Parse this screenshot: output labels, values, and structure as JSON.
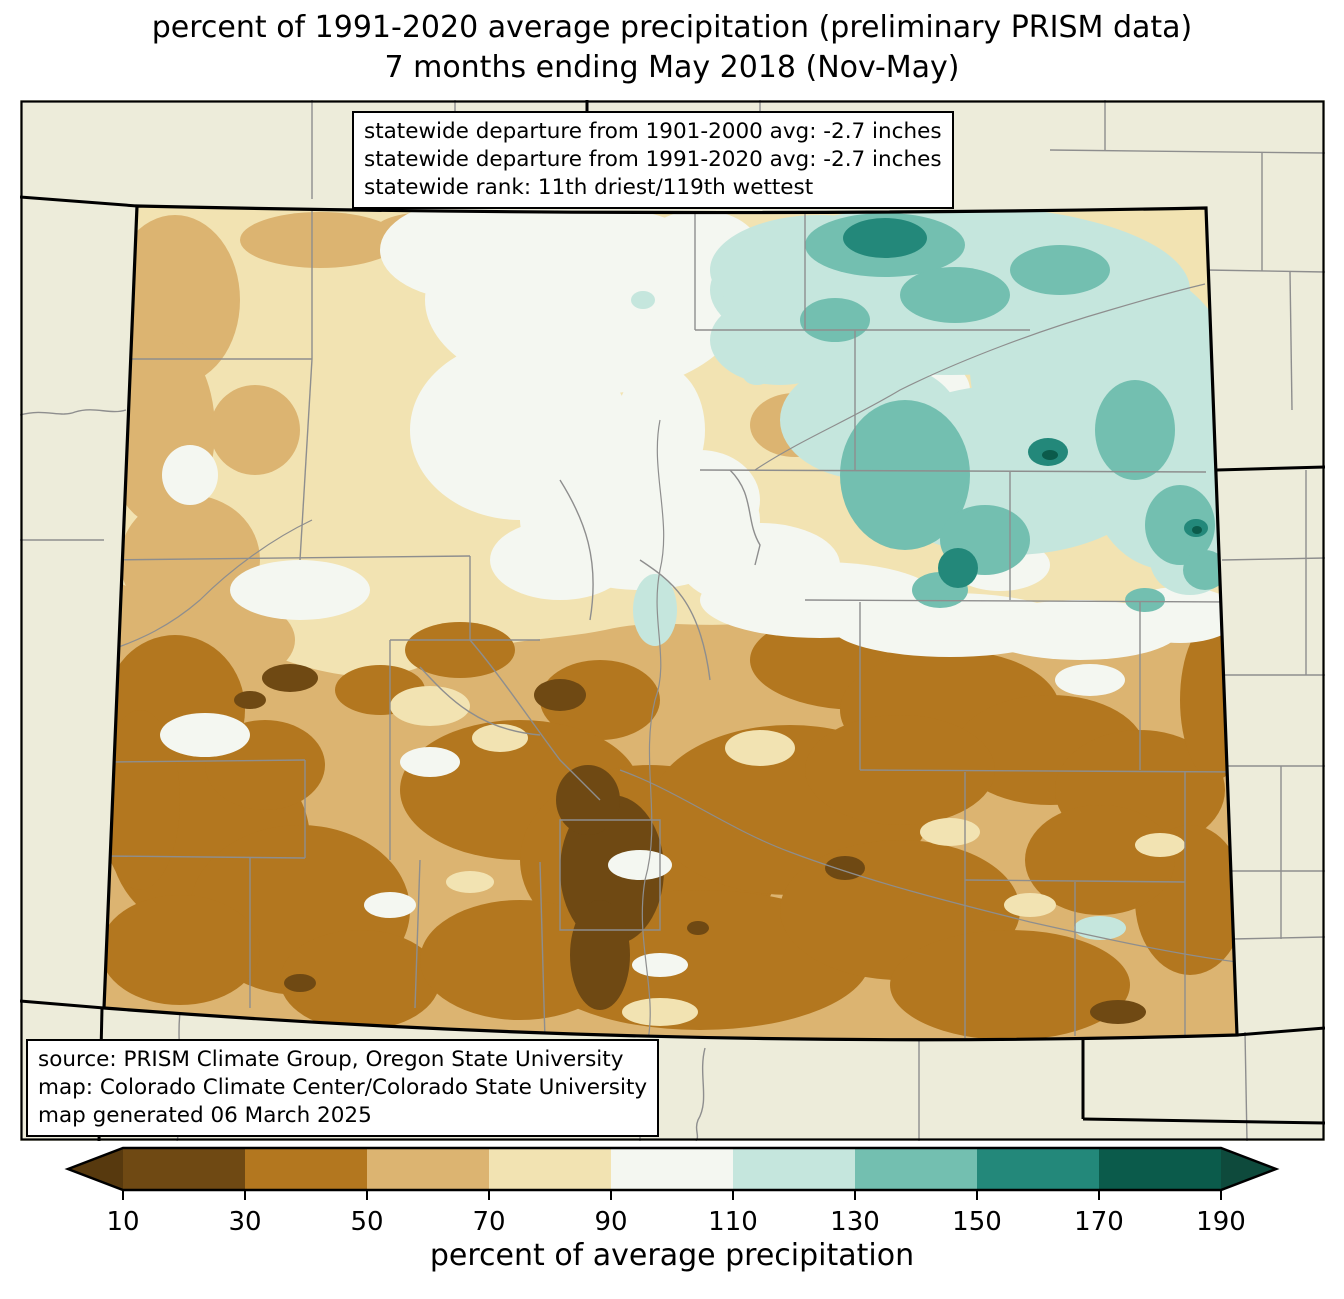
{
  "title": {
    "line1": "percent of 1991-2020 average precipitation (preliminary PRISM data)",
    "line2": "7 months ending May 2018 (Nov-May)"
  },
  "stats_box": {
    "lines": [
      "statewide departure from 1901-2000 avg: -2.7 inches",
      "statewide departure from 1991-2020 avg: -2.7 inches",
      "statewide rank: 11th driest/119th wettest"
    ]
  },
  "source_box": {
    "lines": [
      "source: PRISM Climate Group, Oregon State University",
      "map: Colorado Climate Center/Colorado State University",
      "map generated 06 March 2025"
    ]
  },
  "colorbar": {
    "xlabel": "percent of average precipitation",
    "tick_labels": [
      "10",
      "30",
      "50",
      "70",
      "90",
      "110",
      "130",
      "150",
      "170",
      "190"
    ],
    "segment_colors": [
      "#6F4913",
      "#B3771F",
      "#DCB471",
      "#F2E3B2",
      "#F4F7F1",
      "#C5E6DD",
      "#73BFB0",
      "#23887A",
      "#0B5B4B"
    ],
    "under_color": "#57390E",
    "over_color": "#0E4A3C",
    "outline_color": "#000000"
  },
  "map": {
    "region": "Colorado",
    "palette": {
      "band10": "#6F4913",
      "band30": "#B3771F",
      "band50": "#DCB471",
      "band70": "#F2E3B2",
      "band90": "#F4F7F1",
      "band110": "#C5E6DD",
      "band130": "#73BFB0",
      "band150": "#23887A",
      "band170": "#0B5B4B",
      "outside": "#EDECDA",
      "county": "#8E8E8E",
      "river": "#8E8E8E",
      "state": "#000000",
      "frame": "#000000"
    }
  }
}
